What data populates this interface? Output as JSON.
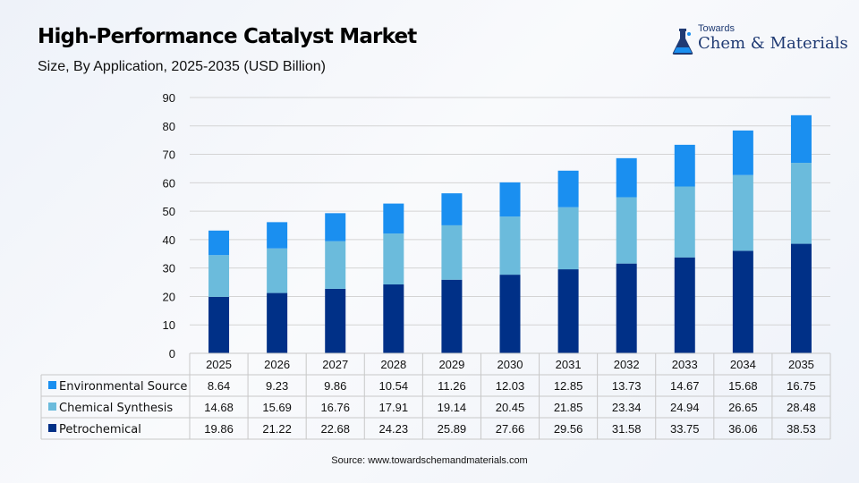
{
  "header": {
    "title": "High-Performance Catalyst Market",
    "subtitle": "Size, By Application, 2025-2035 (USD Billion)"
  },
  "logo": {
    "top_text": "Towards",
    "brand_text": "Chem & Materials",
    "icon": "flask-icon"
  },
  "footer": {
    "source": "Source: www.towardschemandmaterials.com"
  },
  "colors": {
    "Petrochemical": "#003087",
    "Chemical Synthesis": "#6bbbdc",
    "Environmental Source": "#1a8ff0"
  },
  "chart_data": {
    "type": "bar",
    "stacked": true,
    "categories": [
      "2025",
      "2026",
      "2027",
      "2028",
      "2029",
      "2030",
      "2031",
      "2032",
      "2033",
      "2034",
      "2035"
    ],
    "series": [
      {
        "name": "Petrochemical",
        "values": [
          19.86,
          21.22,
          22.68,
          24.23,
          25.89,
          27.66,
          29.56,
          31.58,
          33.75,
          36.06,
          38.53
        ]
      },
      {
        "name": "Chemical Synthesis",
        "values": [
          14.68,
          15.69,
          16.76,
          17.91,
          19.14,
          20.45,
          21.85,
          23.34,
          24.94,
          26.65,
          28.48
        ]
      },
      {
        "name": "Environmental Source",
        "values": [
          8.64,
          9.23,
          9.86,
          10.54,
          11.26,
          12.03,
          12.85,
          13.73,
          14.67,
          15.68,
          16.75
        ]
      }
    ],
    "table_row_order": [
      "Environmental Source",
      "Chemical Synthesis",
      "Petrochemical"
    ],
    "ylim": [
      0,
      90
    ],
    "yticks": [
      0,
      10,
      20,
      30,
      40,
      50,
      60,
      70,
      80,
      90
    ],
    "grid": true,
    "legend_placement": "data-table-left"
  }
}
